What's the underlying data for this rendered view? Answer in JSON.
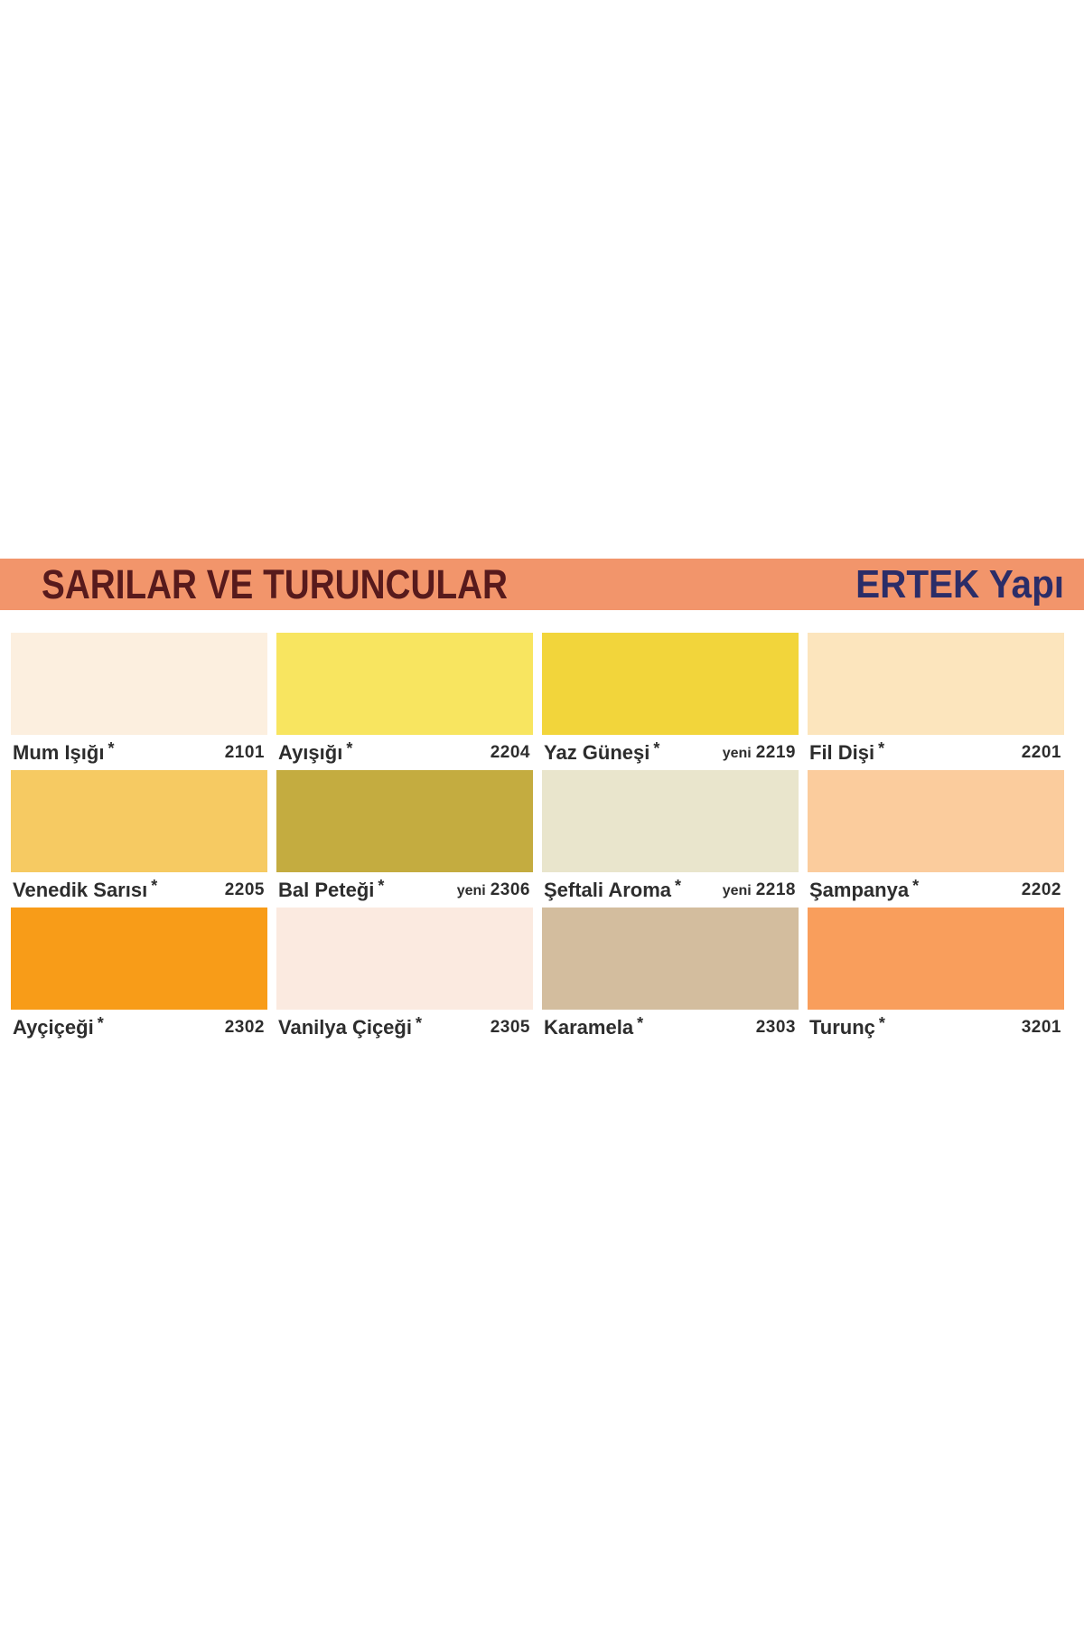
{
  "header": {
    "title": "SARILAR VE TURUNCULAR",
    "brand": "ERTEK Yapı",
    "bar_color": "#F2956B",
    "title_color": "#571A1C",
    "brand_color": "#2B2D68"
  },
  "swatches": [
    {
      "name": "Mum Işığı",
      "star": "*",
      "code_prefix": "",
      "code": "2101",
      "color": "#FCEFDF"
    },
    {
      "name": "Ayışığı",
      "star": "*",
      "code_prefix": "",
      "code": "2204",
      "color": "#F8E560"
    },
    {
      "name": "Yaz Güneşi",
      "star": "*",
      "code_prefix": "yeni",
      "code": "2219",
      "color": "#F2D53B"
    },
    {
      "name": "Fil Dişi",
      "star": "*",
      "code_prefix": "",
      "code": "2201",
      "color": "#FCE5BD"
    },
    {
      "name": "Venedik Sarısı",
      "star": "*",
      "code_prefix": "",
      "code": "2205",
      "color": "#F6CA62"
    },
    {
      "name": "Bal Peteği",
      "star": "*",
      "code_prefix": "yeni",
      "code": "2306",
      "color": "#C4AC40"
    },
    {
      "name": "Şeftali Aroma",
      "star": "*",
      "code_prefix": "yeni",
      "code": "2218",
      "color": "#E9E5CC"
    },
    {
      "name": "Şampanya",
      "star": "*",
      "code_prefix": "",
      "code": "2202",
      "color": "#FBCC9D"
    },
    {
      "name": "Ayçiçeği",
      "star": "*",
      "code_prefix": "",
      "code": "2302",
      "color": "#F89C18"
    },
    {
      "name": "Vanilya Çiçeği",
      "star": "*",
      "code_prefix": "",
      "code": "2305",
      "color": "#FBEAE0"
    },
    {
      "name": "Karamela",
      "star": "*",
      "code_prefix": "",
      "code": "2303",
      "color": "#D3BD9E"
    },
    {
      "name": "Turunç",
      "star": "*",
      "code_prefix": "",
      "code": "3201",
      "color": "#F99E5C"
    }
  ]
}
